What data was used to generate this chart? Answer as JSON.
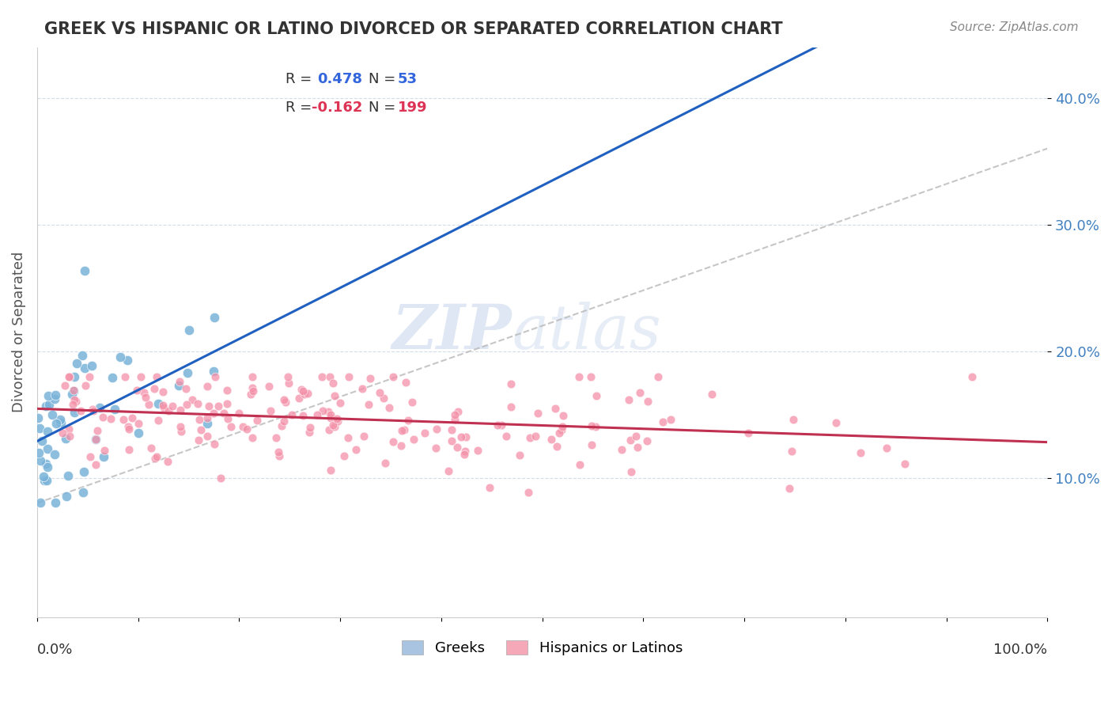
{
  "title": "GREEK VS HISPANIC OR LATINO DIVORCED OR SEPARATED CORRELATION CHART",
  "source_text": "Source: ZipAtlas.com",
  "ylabel": "Divorced or Separated",
  "y_tick_labels": [
    "10.0%",
    "20.0%",
    "30.0%",
    "40.0%"
  ],
  "y_tick_values": [
    0.1,
    0.2,
    0.3,
    0.4
  ],
  "legend_color1": "#a8c4e0",
  "legend_color2": "#f4a8b8",
  "watermark_zip": "ZIP",
  "watermark_atlas": "atlas",
  "greek_color": "#7ab3d9",
  "hispanic_color": "#f490a8",
  "trend_greek_color": "#2060c0",
  "trend_hispanic_color": "#c03050",
  "trend_dashed_color": "#b8b8b8",
  "background_color": "#ffffff",
  "grid_color": "#d0d8e8",
  "R_greek": 0.478,
  "N_greek": 53,
  "R_hispanic": -0.162,
  "N_hispanic": 199,
  "greek_seed": 42,
  "hispanic_seed": 7,
  "xlim": [
    0.0,
    1.0
  ],
  "ylim": [
    -0.01,
    0.44
  ]
}
